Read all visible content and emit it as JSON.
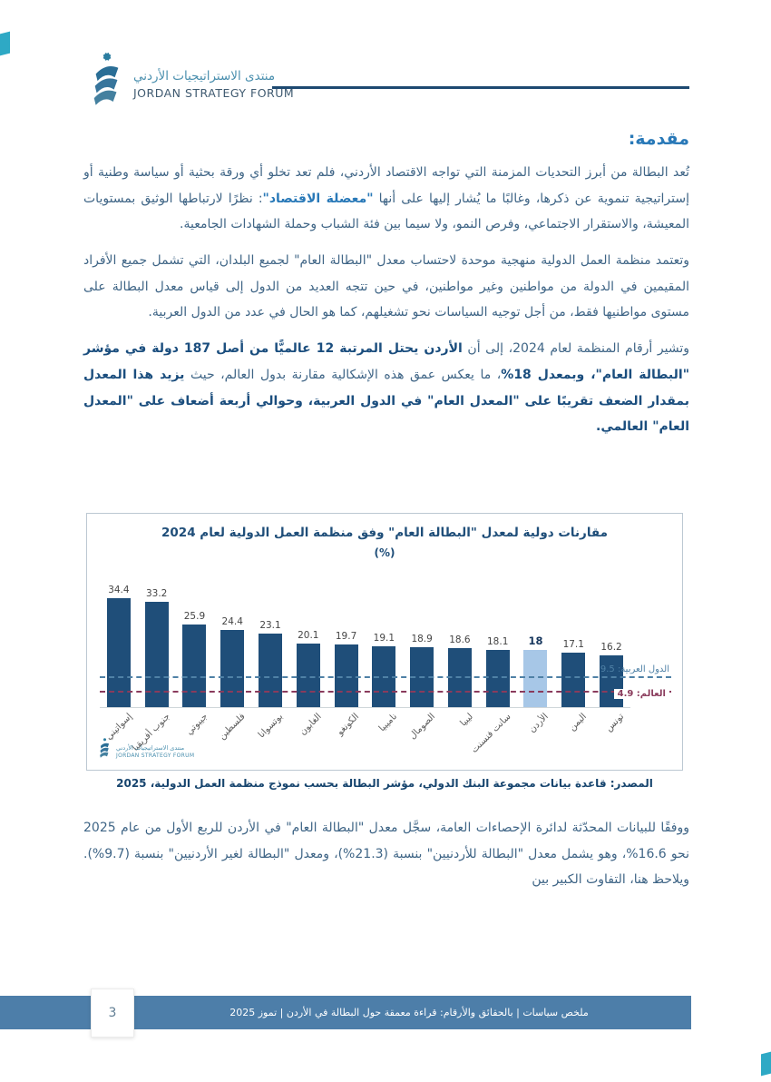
{
  "header": {
    "logo_arabic": "منتدى الاستراتيجيات الأردني",
    "logo_english": "JORDAN STRATEGY FORUM"
  },
  "intro": {
    "title": "مقدمة:",
    "paragraphs": [
      {
        "segments": [
          {
            "style": "normal",
            "text": "تُعد البطالة من أبرز التحديات المزمنة التي تواجه الاقتصاد الأردني، فلم تعد تخلو أي ورقة بحثية أو سياسة وطنية أو إستراتيجية تنموية عن ذكرها، وغالبًا ما يُشار إليها على أنها "
          },
          {
            "style": "accent",
            "text": "\"معضلة الاقتصاد\""
          },
          {
            "style": "normal",
            "text": ": نظرًا لارتباطها الوثيق بمستويات المعيشة، والاستقرار الاجتماعي، وفرص النمو، ولا سيما بين فئة الشباب وحملة الشهادات الجامعية."
          }
        ]
      },
      {
        "segments": [
          {
            "style": "normal",
            "text": "وتعتمد منظمة العمل الدولية منهجية موحدة لاحتساب معدل \"البطالة العام\" لجميع البلدان، التي تشمل جميع الأفراد المقيمين في الدولة من مواطنين وغير مواطنين، في حين تتجه العديد من الدول إلى قياس معدل البطالة على مستوى مواطنيها فقط، من أجل توجيه السياسات نحو تشغيلهم، كما هو الحال في عدد من الدول العربية."
          }
        ]
      },
      {
        "segments": [
          {
            "style": "normal",
            "text": "وتشير أرقام المنظمة لعام 2024، إلى أن "
          },
          {
            "style": "bold",
            "text": "الأردن يحتل المرتبة 12 عالميًّا من أصل 187 دولة في مؤشر \"البطالة العام\"، وبمعدل 18%"
          },
          {
            "style": "normal",
            "text": "، ما يعكس عمق هذه الإشكالية مقارنة بدول العالم، حيث "
          },
          {
            "style": "bold",
            "text": "يزيد هذا المعدل بمقدار الضعف تقريبًا على \"المعدل العام\" في الدول العربية، وحوالي أربعة أضعاف على \"المعدل العام\" العالمي."
          }
        ]
      }
    ],
    "closing_paragraph": {
      "segments": [
        {
          "style": "normal",
          "text": "ووفقًا للبيانات المحدّثة لدائرة الإحصاءات العامة، سجَّل معدل \"البطالة العام\" في الأردن للربع الأول من عام 2025 نحو 16.6%، وهو يشمل معدل \"البطالة للأردنيين\" بنسبة (21.3%)، ومعدل \"البطالة لغير الأردنيين\" بنسبة (9.7%). ويلاحظ هنا، التفاوت الكبير بين"
        }
      ]
    }
  },
  "chart_data": {
    "type": "bar",
    "title": "مقارنات دولية لمعدل \"البطالة العام\" وفق منظمة العمل الدولية لعام 2024",
    "subtitle": "(%)",
    "categories": [
      "إسواتيني",
      "جنوب أفريقيا",
      "جيبوتي",
      "فلسطين",
      "بوتسوانا",
      "الغابون",
      "الكونغو",
      "ناميبيا",
      "الصومال",
      "ليبيا",
      "سانت فنسنت",
      "الأردن",
      "اليمن",
      "تونس"
    ],
    "values": [
      34.4,
      33.2,
      25.9,
      24.4,
      23.1,
      20.1,
      19.7,
      19.1,
      18.9,
      18.6,
      18.1,
      18,
      17.1,
      16.2
    ],
    "highlight_index": 11,
    "highlight_category": "الأردن",
    "bar_color": "#1f4e79",
    "highlight_color": "#a7c7e7",
    "ylim": [
      0,
      36
    ],
    "grid": false,
    "legend": "none",
    "reference_lines": [
      {
        "label": "الدول العربية",
        "value": 9.5,
        "color": "#4f81a6"
      },
      {
        "label": "العالم",
        "value": 4.9,
        "color": "#8a3b5c"
      }
    ],
    "source": "المصدر: قاعدة بيانات مجموعة البنك الدولي، مؤشر البطالة بحسب نموذج منظمة العمل الدولية، 2025",
    "logo_arabic": "منتدى الاستراتيجيات الأردني",
    "logo_english": "JORDAN STRATEGY FORUM"
  },
  "footer": {
    "text": "ملخص سياسات | بالحقائق والأرقام: قراءة معمقة حول البطالة في الأردن | تموز 2025",
    "page_number": "3"
  }
}
